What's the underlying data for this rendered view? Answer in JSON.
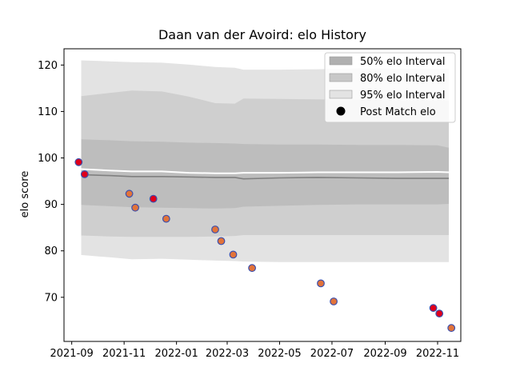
{
  "chart_data": {
    "type": "scatter",
    "title": "Daan van der Avoird: elo History",
    "xlabel": "",
    "ylabel": "elo score",
    "xlim": [
      "2021-08-23",
      "2022-11-28"
    ],
    "ylim": [
      60.5,
      123.5
    ],
    "x_ticks": [
      "2021-09",
      "2021-11",
      "2022-01",
      "2022-03",
      "2022-05",
      "2022-07",
      "2022-09",
      "2022-11"
    ],
    "y_ticks": [
      70,
      80,
      90,
      100,
      110,
      120
    ],
    "grid": false,
    "legend_position": "upper right",
    "legend": [
      {
        "label": "50% elo Interval",
        "kind": "band",
        "color": "#b0b0b0"
      },
      {
        "label": "80% elo Interval",
        "kind": "band",
        "color": "#c8c8c8"
      },
      {
        "label": "95% elo Interval",
        "kind": "band",
        "color": "#e3e3e3"
      },
      {
        "label": "Post Match elo",
        "kind": "marker",
        "color": "#000000"
      }
    ],
    "bands_x": [
      "2021-09-12",
      "2021-10-15",
      "2021-11-10",
      "2021-12-15",
      "2022-01-15",
      "2022-02-15",
      "2022-03-10",
      "2022-03-20",
      "2022-05-01",
      "2022-06-15",
      "2022-08-01",
      "2022-09-15",
      "2022-11-01",
      "2022-11-14"
    ],
    "series": [
      {
        "name": "95% elo Interval",
        "kind": "band",
        "color": "#e3e3e3",
        "upper": [
          121,
          120.8,
          120.6,
          120.5,
          120.1,
          119.6,
          119.4,
          119.0,
          119.0,
          119.1,
          119.3,
          119.2,
          119.2,
          119.2
        ],
        "lower": [
          79.1,
          78.6,
          78.2,
          78.3,
          78.1,
          77.9,
          77.8,
          77.7,
          77.6,
          77.6,
          77.6,
          77.6,
          77.6,
          77.6
        ]
      },
      {
        "name": "80% elo Interval",
        "kind": "band",
        "color": "#cfcfcf",
        "upper": [
          113.3,
          114.0,
          114.5,
          114.3,
          113.2,
          111.8,
          111.7,
          112.8,
          112.7,
          112.6,
          112.5,
          112.4,
          112.4,
          112.4
        ],
        "lower": [
          83.3,
          83.1,
          83.0,
          83.0,
          83.0,
          83.1,
          83.2,
          83.4,
          83.4,
          83.4,
          83.4,
          83.4,
          83.4,
          83.4
        ]
      },
      {
        "name": "50% elo Interval",
        "kind": "band",
        "color": "#bdbdbd",
        "upper": [
          104.0,
          103.8,
          103.6,
          103.5,
          103.3,
          103.2,
          103.1,
          103.0,
          102.9,
          102.9,
          102.8,
          102.8,
          102.7,
          102.2
        ],
        "lower": [
          89.9,
          89.6,
          89.4,
          89.3,
          89.2,
          89.1,
          89.2,
          89.5,
          89.7,
          89.9,
          90.0,
          90.0,
          90.0,
          90.1
        ]
      },
      {
        "name": "median",
        "kind": "line",
        "color": "#808080",
        "y": [
          96.4,
          96.2,
          96.0,
          96.0,
          95.9,
          95.8,
          95.8,
          95.5,
          95.7,
          95.8,
          95.7,
          95.6,
          95.6,
          95.6
        ]
      },
      {
        "name": "mean",
        "kind": "line",
        "color": "#ffffff",
        "y": [
          97.6,
          97.3,
          97.1,
          97.1,
          96.8,
          96.7,
          96.7,
          96.8,
          96.8,
          96.9,
          96.9,
          96.9,
          97.0,
          96.9
        ]
      },
      {
        "name": "Post Match elo",
        "kind": "points",
        "points": [
          {
            "x": "2021-09-09",
            "y": 99.1,
            "win": true
          },
          {
            "x": "2021-09-16",
            "y": 96.5,
            "win": true
          },
          {
            "x": "2021-11-07",
            "y": 92.3,
            "win": false
          },
          {
            "x": "2021-11-14",
            "y": 89.3,
            "win": false
          },
          {
            "x": "2021-12-05",
            "y": 91.2,
            "win": true
          },
          {
            "x": "2021-12-20",
            "y": 86.9,
            "win": false
          },
          {
            "x": "2022-02-15",
            "y": 84.6,
            "win": false
          },
          {
            "x": "2022-02-22",
            "y": 82.1,
            "win": false
          },
          {
            "x": "2022-03-08",
            "y": 79.2,
            "win": false
          },
          {
            "x": "2022-03-30",
            "y": 76.3,
            "win": false
          },
          {
            "x": "2022-06-18",
            "y": 73.0,
            "win": false
          },
          {
            "x": "2022-07-03",
            "y": 69.1,
            "win": false
          },
          {
            "x": "2022-10-27",
            "y": 67.7,
            "win": true
          },
          {
            "x": "2022-11-03",
            "y": 66.5,
            "win": true
          },
          {
            "x": "2022-11-17",
            "y": 63.4,
            "win": false
          }
        ]
      }
    ],
    "colors": {
      "win_fill": "#e0001a",
      "loss_fill": "#e2733a",
      "point_edge": "#3b4fae",
      "axis": "#000000"
    }
  }
}
